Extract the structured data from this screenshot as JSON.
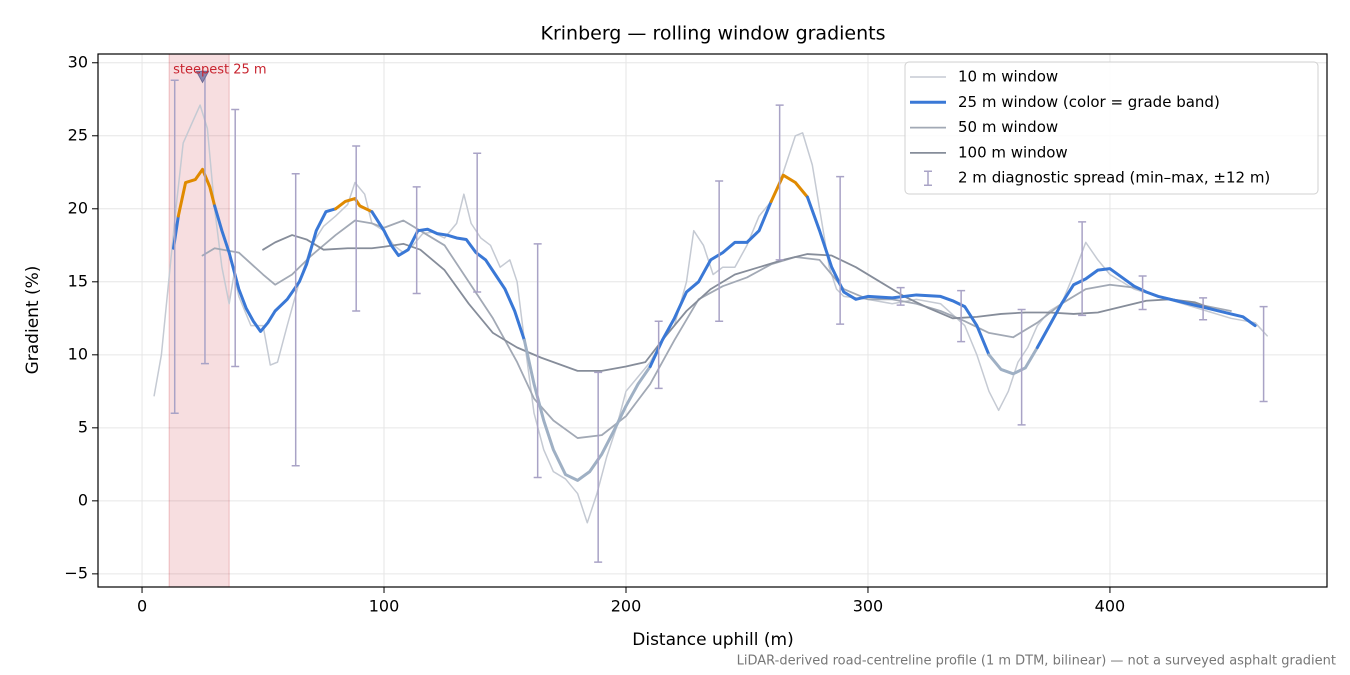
{
  "chart_data": {
    "type": "line",
    "title": "Krinberg — rolling window gradients",
    "xlabel": "Distance uphill (m)",
    "ylabel": "Gradient (%)",
    "footnote": "LiDAR-derived road-centreline profile (1 m DTM, bilinear) — not a surveyed asphalt gradient",
    "xlim": [
      -18.2,
      489.7
    ],
    "ylim": [
      -5.9,
      30.6
    ],
    "xticks": [
      0,
      100,
      200,
      300,
      400
    ],
    "yticks": [
      {
        "value": -5,
        "label": "−5"
      },
      0,
      5,
      10,
      15,
      20,
      25,
      30
    ],
    "grid": true,
    "legend": "upper right",
    "series": [
      {
        "name": "10 m window",
        "color": "#c5cad3",
        "width": 1.5,
        "x": [
          5,
          8,
          11,
          14,
          17,
          21,
          24,
          27,
          30,
          33,
          36,
          38,
          40,
          45,
          50,
          53,
          56,
          60,
          65,
          70,
          75,
          80,
          85,
          88,
          92,
          95,
          100,
          104,
          108,
          112,
          116,
          120,
          125,
          130,
          133,
          136,
          140,
          144,
          148,
          152,
          155,
          158,
          162,
          166,
          170,
          175,
          180,
          184,
          188,
          192,
          196,
          200,
          205,
          210,
          215,
          220,
          225,
          228,
          232,
          236,
          240,
          245,
          250,
          255,
          260,
          265,
          270,
          273,
          277,
          280,
          284,
          287,
          290,
          300,
          310,
          320,
          330,
          340,
          345,
          350,
          354,
          358,
          362,
          366,
          370,
          375,
          380,
          385,
          390,
          395,
          400,
          410,
          420,
          430,
          440,
          450,
          460,
          465
        ],
        "values": [
          7.2,
          10,
          15,
          20,
          24.5,
          26,
          27.1,
          25.5,
          20,
          16,
          13.5,
          15.5,
          14,
          12,
          12,
          9.3,
          9.5,
          12,
          15,
          17.5,
          18.8,
          19.5,
          20.3,
          21.8,
          21,
          19,
          18.5,
          17.5,
          17,
          17.5,
          18.3,
          18.4,
          18,
          19,
          21,
          19,
          18,
          17.5,
          16,
          16.5,
          15,
          11,
          6,
          3.5,
          2,
          1.5,
          0.5,
          -1.5,
          0.5,
          3,
          5,
          7.5,
          8.5,
          9.5,
          11,
          12,
          15,
          18.5,
          17.5,
          15.5,
          16,
          16,
          17.5,
          19.5,
          20.5,
          22.5,
          25,
          25.2,
          23,
          20,
          16,
          14.5,
          14,
          13.8,
          13.5,
          13.8,
          13.5,
          12,
          10,
          7.5,
          6.2,
          7.5,
          9.5,
          10.5,
          12,
          13,
          13.5,
          15.5,
          17.7,
          16.5,
          15.5,
          14.5,
          14,
          13.5,
          13,
          12.5,
          12.2,
          11.3
        ]
      },
      {
        "name": "25 m window (color = grade band)",
        "color": "#3a78d6",
        "width": 3,
        "grade_bands": {
          "thresholds": [
            10,
            20
          ],
          "colors": [
            "#9fb0c4",
            "#3a78d6",
            "#e08a00"
          ]
        },
        "x": [
          13,
          15,
          18,
          22,
          25,
          28,
          30,
          33,
          36,
          40,
          43,
          46,
          49,
          52,
          55,
          60,
          65,
          68,
          72,
          76,
          80,
          84,
          88,
          90,
          95,
          100,
          103,
          106,
          110,
          114,
          118,
          122,
          126,
          130,
          134,
          138,
          142,
          146,
          150,
          154,
          158,
          162,
          166,
          170,
          175,
          180,
          185,
          190,
          195,
          200,
          205,
          210,
          215,
          220,
          225,
          230,
          235,
          240,
          245,
          250,
          255,
          260,
          265,
          270,
          275,
          280,
          285,
          290,
          295,
          300,
          310,
          320,
          330,
          335,
          340,
          345,
          350,
          355,
          360,
          365,
          370,
          375,
          380,
          385,
          390,
          395,
          400,
          405,
          410,
          415,
          420,
          430,
          440,
          450,
          455,
          460
        ],
        "values": [
          17.3,
          19.5,
          21.8,
          22,
          22.7,
          21.5,
          20.2,
          18.5,
          17,
          14.5,
          13.2,
          12.3,
          11.6,
          12.2,
          13,
          13.8,
          15,
          16.2,
          18.5,
          19.8,
          20,
          20.5,
          20.7,
          20.2,
          19.8,
          18.5,
          17.5,
          16.8,
          17.2,
          18.5,
          18.6,
          18.3,
          18.2,
          18,
          17.9,
          17,
          16.5,
          15.5,
          14.5,
          13,
          11,
          8,
          5.5,
          3.5,
          1.8,
          1.4,
          2,
          3.2,
          4.8,
          6.5,
          8,
          9.2,
          11,
          12.5,
          14.3,
          15,
          16.5,
          17,
          17.7,
          17.7,
          18.5,
          20.5,
          22.3,
          21.8,
          20.8,
          18.5,
          16,
          14.3,
          13.8,
          14,
          13.9,
          14.1,
          14,
          13.7,
          13.3,
          12,
          10,
          9,
          8.7,
          9.1,
          10.5,
          12,
          13.5,
          14.8,
          15.2,
          15.8,
          15.9,
          15.3,
          14.7,
          14.3,
          14,
          13.6,
          13.2,
          12.8,
          12.6,
          12
        ]
      },
      {
        "name": "50 m window",
        "color": "#a2a9b5",
        "width": 1.8,
        "x": [
          25,
          30,
          40,
          50,
          55,
          62,
          70,
          80,
          88,
          95,
          100,
          108,
          115,
          125,
          135,
          145,
          155,
          162,
          170,
          180,
          190,
          200,
          210,
          220,
          230,
          240,
          250,
          260,
          270,
          280,
          290,
          300,
          310,
          320,
          330,
          340,
          350,
          360,
          370,
          380,
          390,
          400,
          410,
          420,
          435,
          450
        ],
        "values": [
          16.8,
          17.3,
          17,
          15.5,
          14.8,
          15.5,
          16.8,
          18.2,
          19.2,
          19,
          18.7,
          19.2,
          18.5,
          17.5,
          15,
          12.5,
          9.5,
          7,
          5.5,
          4.3,
          4.5,
          5.8,
          8,
          11,
          13.8,
          14.7,
          15.3,
          16.2,
          16.7,
          16.5,
          14.5,
          13.8,
          13.8,
          13.5,
          13,
          12.3,
          11.5,
          11.2,
          12.2,
          13.5,
          14.5,
          14.8,
          14.6,
          14,
          13.5,
          13
        ]
      },
      {
        "name": "100 m window",
        "color": "#868d9a",
        "width": 1.8,
        "x": [
          50,
          55,
          62,
          68,
          75,
          85,
          95,
          100,
          108,
          115,
          125,
          135,
          145,
          155,
          165,
          175,
          180,
          190,
          200,
          208,
          215,
          225,
          235,
          245,
          255,
          265,
          275,
          285,
          295,
          305,
          315,
          325,
          335,
          345,
          355,
          365,
          375,
          385,
          395,
          405,
          415,
          425,
          435,
          445
        ],
        "values": [
          17.2,
          17.7,
          18.2,
          17.9,
          17.2,
          17.3,
          17.3,
          17.4,
          17.6,
          17.2,
          15.8,
          13.5,
          11.5,
          10.5,
          9.8,
          9.2,
          8.9,
          8.9,
          9.2,
          9.5,
          11,
          13,
          14.5,
          15.5,
          16,
          16.5,
          16.9,
          16.8,
          16,
          15,
          14,
          13.2,
          12.5,
          12.6,
          12.8,
          12.9,
          12.9,
          12.8,
          12.9,
          13.3,
          13.7,
          13.8,
          13.6,
          13
        ]
      }
    ],
    "errorbars": {
      "name": "2 m diagnostic spread (min–max, ±12 m)",
      "color": "#a9a3c6",
      "x": [
        13.5,
        26,
        38.5,
        63.5,
        88.5,
        113.5,
        138.5,
        163.5,
        188.5,
        213.5,
        238.5,
        263.5,
        288.5,
        313.5,
        338.5,
        363.5,
        388.5,
        413.5,
        438.5,
        463.5
      ],
      "low": [
        6,
        9.4,
        9.2,
        2.4,
        13,
        14.2,
        14.3,
        1.6,
        -4.2,
        7.7,
        12.3,
        16.5,
        12.1,
        13.4,
        10.9,
        5.2,
        12.7,
        13.1,
        12.4,
        6.8
      ],
      "high": [
        28.8,
        29.4,
        26.8,
        22.4,
        24.3,
        21.5,
        23.8,
        17.6,
        8.8,
        12.3,
        21.9,
        27.1,
        22.2,
        14.6,
        14.4,
        13.1,
        19.1,
        15.4,
        13.9,
        13.3
      ]
    },
    "annotation": {
      "text": "steepest 25 m",
      "color": "#c8242f",
      "x0": 11.2,
      "x1": 36,
      "marker_x": 25,
      "marker_y": 29
    }
  }
}
